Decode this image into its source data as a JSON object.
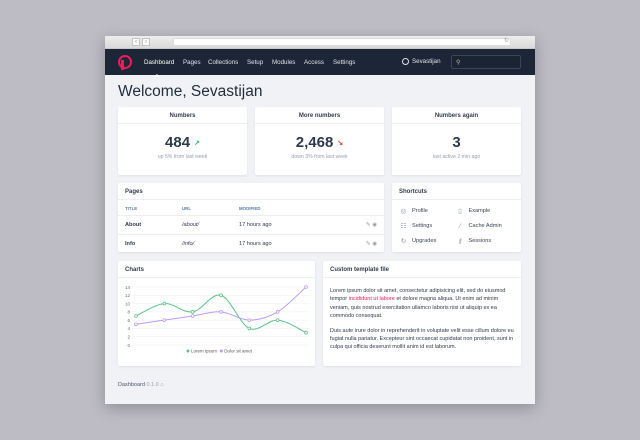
{
  "nav": {
    "items": [
      "Dashboard",
      "Pages",
      "Collections",
      "Setup",
      "Modules",
      "Access",
      "Settings"
    ],
    "active": "Dashboard",
    "user": "Sevastijan",
    "search_placeholder": ""
  },
  "page_title": "Welcome, Sevastijan",
  "stats": [
    {
      "title": "Numbers",
      "value": "484",
      "trend": "up",
      "trend_color": "#2fb87a",
      "sub": "up 5% from last week"
    },
    {
      "title": "More numbers",
      "value": "2,468",
      "trend": "down",
      "trend_color": "#e8413b",
      "sub": "down 3% from last week"
    },
    {
      "title": "Numbers again",
      "value": "3",
      "sub": "last active 2 min ago"
    }
  ],
  "pages": {
    "title": "Pages",
    "columns": [
      "TITLE",
      "URL",
      "MODIFIED"
    ],
    "rows": [
      {
        "title": "About",
        "url": "/about/",
        "modified": "17 hours ago"
      },
      {
        "title": "Info",
        "url": "/info/",
        "modified": "17 hours ago"
      }
    ]
  },
  "shortcuts": {
    "title": "Shortcuts",
    "items": [
      {
        "label": "Profile",
        "icon": "user-circle-icon"
      },
      {
        "label": "Example",
        "icon": "file-icon"
      },
      {
        "label": "Settings",
        "icon": "sliders-icon"
      },
      {
        "label": "Cache Admin",
        "icon": "wand-icon"
      },
      {
        "label": "Upgrades",
        "icon": "refresh-icon"
      },
      {
        "label": "Sessions",
        "icon": "key-icon"
      }
    ]
  },
  "charts": {
    "title": "Charts"
  },
  "chart_data": {
    "type": "line",
    "ylim": [
      0,
      14
    ],
    "yticks": [
      0,
      2,
      4,
      6,
      8,
      10,
      12,
      14
    ],
    "grid": true,
    "legend": "bottom",
    "series": [
      {
        "name": "Lorem ipsum",
        "color": "#5cc08a",
        "values": [
          7,
          10,
          8,
          12,
          4,
          6,
          3
        ]
      },
      {
        "name": "Dolor sit amet",
        "color": "#b89cf5",
        "values": [
          5,
          6,
          7,
          8,
          6,
          8,
          14
        ]
      }
    ]
  },
  "custom": {
    "title": "Custom template file",
    "p1_before": "Lorem ipsum dolor sit amet, consectetur adipisicing elit, sed do eiusmod tempor ",
    "p1_highlight": "incididunt ut labore",
    "p1_after": " et dolore magna aliqua. Ut enim ad minim veniam, quis nostrud exercitation ullamco laboris nisi ut aliquip ex ea commodo consequat.",
    "p2": "Duis aute irure dolor in reprehenderit in voluptate velit esse cillum dolore eu fugiat nulla pariatur. Excepteur sint occaecat cupidatat non proident, sunt in culpa qui officia deserunt mollit anim id est laborum."
  },
  "footer": {
    "name": "Dashboard",
    "version": "0.1.0"
  }
}
